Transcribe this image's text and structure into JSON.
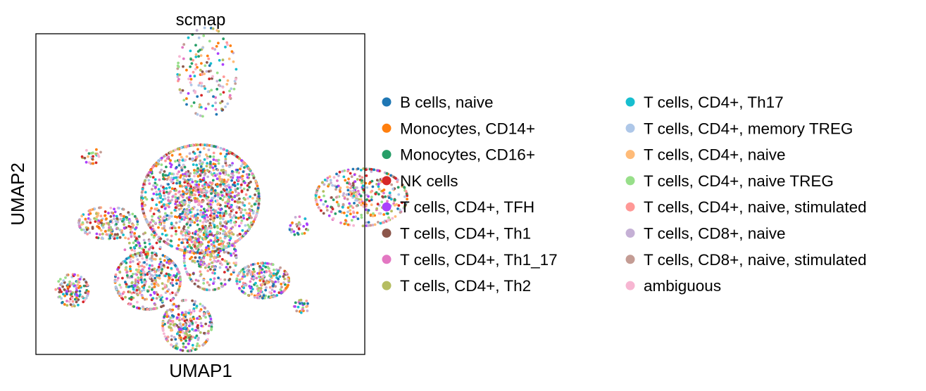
{
  "chart_data": {
    "type": "scatter",
    "title": "scmap",
    "xlabel": "UMAP1",
    "ylabel": "UMAP2",
    "grid": false,
    "xticks": false,
    "yticks": false,
    "legend_position": "right, outside plot, two columns",
    "categories": [
      {
        "label": "B cells, naive",
        "color": "#1f77b4"
      },
      {
        "label": "Monocytes, CD14+",
        "color": "#ff7f0e"
      },
      {
        "label": "Monocytes, CD16+",
        "color": "#279e68"
      },
      {
        "label": "NK cells",
        "color": "#d62728"
      },
      {
        "label": "T cells, CD4+, TFH",
        "color": "#aa40fc"
      },
      {
        "label": "T cells, CD4+, Th1",
        "color": "#8c564b"
      },
      {
        "label": "T cells, CD4+, Th1_17",
        "color": "#e377c2"
      },
      {
        "label": "T cells, CD4+, Th2",
        "color": "#b5bd61"
      },
      {
        "label": "T cells, CD4+, Th17",
        "color": "#17becf"
      },
      {
        "label": "T cells, CD4+, memory TREG",
        "color": "#aec7e8"
      },
      {
        "label": "T cells, CD4+, naive",
        "color": "#ffbb78"
      },
      {
        "label": "T cells, CD4+, naive TREG",
        "color": "#98df8a"
      },
      {
        "label": "T cells, CD4+, naive, stimulated",
        "color": "#ff9896"
      },
      {
        "label": "T cells, CD8+, naive",
        "color": "#c5b0d5"
      },
      {
        "label": "T cells, CD8+, naive, stimulated",
        "color": "#c49c94"
      },
      {
        "label": "ambiguous",
        "color": "#f7b6d2"
      }
    ],
    "clusters": [
      {
        "cx": 5.2,
        "cy": 8.8,
        "sx": 0.9,
        "sy": 1.4,
        "n": 160
      },
      {
        "cx": 1.7,
        "cy": 6.2,
        "sx": 0.3,
        "sy": 0.25,
        "n": 25
      },
      {
        "cx": 5.0,
        "cy": 4.85,
        "sx": 1.8,
        "sy": 1.7,
        "n": 1500
      },
      {
        "cx": 2.2,
        "cy": 4.1,
        "sx": 0.9,
        "sy": 0.5,
        "n": 200
      },
      {
        "cx": 3.2,
        "cy": 3.4,
        "sx": 0.6,
        "sy": 0.4,
        "n": 60
      },
      {
        "cx": 9.9,
        "cy": 4.9,
        "sx": 1.4,
        "sy": 0.9,
        "n": 380
      },
      {
        "cx": 8.0,
        "cy": 4.0,
        "sx": 0.3,
        "sy": 0.3,
        "n": 30
      },
      {
        "cx": 3.4,
        "cy": 2.3,
        "sx": 1.0,
        "sy": 0.9,
        "n": 420
      },
      {
        "cx": 5.3,
        "cy": 3.0,
        "sx": 0.8,
        "sy": 1.0,
        "n": 260
      },
      {
        "cx": 6.9,
        "cy": 2.3,
        "sx": 0.8,
        "sy": 0.55,
        "n": 260
      },
      {
        "cx": 1.1,
        "cy": 2.0,
        "sx": 0.5,
        "sy": 0.5,
        "n": 120
      },
      {
        "cx": 8.1,
        "cy": 1.5,
        "sx": 0.25,
        "sy": 0.2,
        "n": 25
      },
      {
        "cx": 4.6,
        "cy": 0.9,
        "sx": 0.75,
        "sy": 0.8,
        "n": 280
      }
    ],
    "xlim": [
      0,
      10
    ],
    "ylim": [
      0,
      10
    ]
  }
}
